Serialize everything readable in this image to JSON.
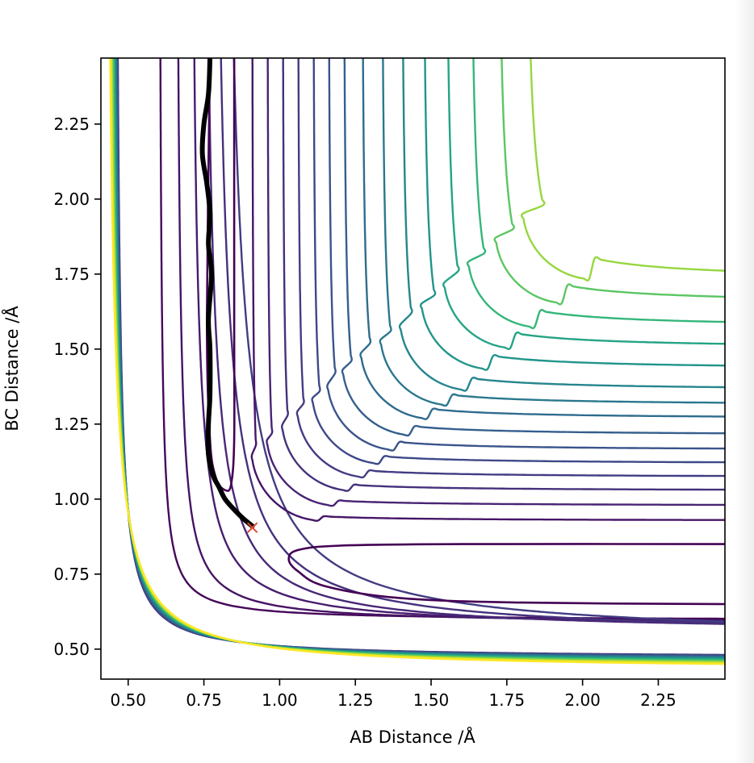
{
  "chart_data": {
    "type": "contour",
    "title": "",
    "xlabel": "AB Distance /Å",
    "ylabel": "BC Distance /Å",
    "xlim": [
      0.41,
      2.47
    ],
    "ylim": [
      0.4,
      2.47
    ],
    "x_ticks": [
      "0.50",
      "0.75",
      "1.00",
      "1.25",
      "1.50",
      "1.75",
      "2.00",
      "2.25"
    ],
    "y_ticks": [
      "0.50",
      "0.75",
      "1.00",
      "1.25",
      "1.50",
      "1.75",
      "2.00",
      "2.25"
    ],
    "x_tick_values": [
      0.5,
      0.75,
      1.0,
      1.25,
      1.5,
      1.75,
      2.0,
      2.25
    ],
    "y_tick_values": [
      0.5,
      0.75,
      1.0,
      1.25,
      1.5,
      1.75,
      2.0,
      2.25
    ],
    "grid": false,
    "colormap": "viridis",
    "contour_lines": [
      {
        "name": "inner-contour",
        "points": [
          [
            0.77,
            2.47
          ],
          [
            0.76,
            1.6
          ],
          [
            0.77,
            1.2
          ],
          [
            0.79,
            1.07
          ],
          [
            0.82,
            1.03
          ],
          [
            0.84,
            1.05
          ],
          [
            0.85,
            1.2
          ],
          [
            0.85,
            1.6
          ],
          [
            0.85,
            2.47
          ]
        ],
        "color": "#440154"
      },
      {
        "name": "channel-contour",
        "points": [
          [
            2.47,
            0.85
          ],
          [
            1.6,
            0.85
          ],
          [
            1.2,
            0.845
          ],
          [
            1.06,
            0.83
          ],
          [
            1.03,
            0.8
          ],
          [
            1.06,
            0.76
          ],
          [
            1.15,
            0.71
          ],
          [
            1.4,
            0.67
          ],
          [
            1.8,
            0.655
          ],
          [
            2.47,
            0.65
          ]
        ],
        "color": "#440154"
      }
    ],
    "trajectory": {
      "color": "#000000",
      "points": [
        [
          0.91,
          0.91
        ],
        [
          0.88,
          0.935
        ],
        [
          0.85,
          0.965
        ],
        [
          0.82,
          1.0
        ],
        [
          0.8,
          1.04
        ],
        [
          0.78,
          1.08
        ],
        [
          0.765,
          1.15
        ],
        [
          0.765,
          1.25
        ],
        [
          0.77,
          1.35
        ],
        [
          0.77,
          1.5
        ],
        [
          0.765,
          1.6
        ],
        [
          0.775,
          1.75
        ],
        [
          0.765,
          1.85
        ],
        [
          0.77,
          1.95
        ],
        [
          0.76,
          2.05
        ],
        [
          0.745,
          2.15
        ],
        [
          0.75,
          2.25
        ],
        [
          0.765,
          2.35
        ],
        [
          0.77,
          2.47
        ]
      ]
    },
    "marker": {
      "x": 0.91,
      "y": 0.905,
      "symbol": "x",
      "color": "#e24a33"
    }
  },
  "colors": {
    "viridis_dark": "#440154",
    "viridis_mid": "#21918c",
    "viridis_light": "#fde725",
    "trajectory": "#000000",
    "marker": "#e24a33"
  }
}
